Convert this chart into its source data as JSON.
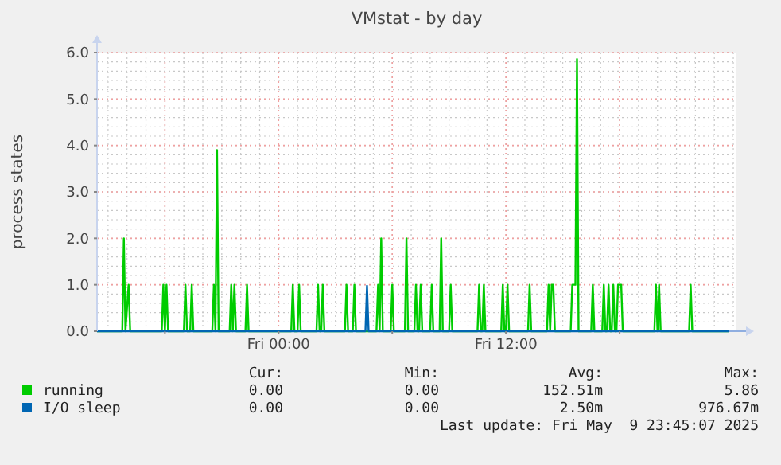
{
  "chart_data": {
    "type": "line",
    "title": "VMstat - by day",
    "ylabel": "process states",
    "grid": true,
    "legend": "bottom",
    "marker": "none",
    "line_style": "solid",
    "xlim": [
      "2025-05-08T14:25",
      "2025-05-10T00:10"
    ],
    "xticks": [
      {
        "value": "2025-05-08T18:00",
        "label": null
      },
      {
        "value": "2025-05-09T00:00",
        "label": "Fri 00:00"
      },
      {
        "value": "2025-05-09T06:00",
        "label": null
      },
      {
        "value": "2025-05-09T12:00",
        "label": "Fri 12:00"
      },
      {
        "value": "2025-05-09T18:00",
        "label": null
      }
    ],
    "ylim": [
      0,
      6
    ],
    "yticks": [
      {
        "value": 0,
        "label": "0.0"
      },
      {
        "value": 1,
        "label": "1.0"
      },
      {
        "value": 2,
        "label": "2.0"
      },
      {
        "value": 3,
        "label": "3.0"
      },
      {
        "value": 4,
        "label": "4.0"
      },
      {
        "value": 5,
        "label": "5.0"
      },
      {
        "value": 6,
        "label": "6.0"
      }
    ],
    "series": [
      {
        "name": "running",
        "color": "#00cc00",
        "x": [
          "2025-05-08T14:25",
          "2025-05-08T15:45",
          "2025-05-08T15:50",
          "2025-05-08T15:55",
          "2025-05-08T16:05",
          "2025-05-08T16:10",
          "2025-05-08T17:50",
          "2025-05-08T17:55",
          "2025-05-08T18:00",
          "2025-05-08T18:05",
          "2025-05-08T18:10",
          "2025-05-08T19:00",
          "2025-05-08T19:05",
          "2025-05-08T19:10",
          "2025-05-08T19:20",
          "2025-05-08T19:25",
          "2025-05-08T19:30",
          "2025-05-08T20:30",
          "2025-05-08T20:35",
          "2025-05-08T20:40",
          "2025-05-08T20:45",
          "2025-05-08T20:50",
          "2025-05-08T21:25",
          "2025-05-08T21:30",
          "2025-05-08T21:35",
          "2025-05-08T21:40",
          "2025-05-08T21:45",
          "2025-05-08T22:15",
          "2025-05-08T22:20",
          "2025-05-08T22:25",
          "2025-05-09T00:40",
          "2025-05-09T00:45",
          "2025-05-09T00:50",
          "2025-05-09T01:00",
          "2025-05-09T01:05",
          "2025-05-09T01:10",
          "2025-05-09T02:00",
          "2025-05-09T02:05",
          "2025-05-09T02:10",
          "2025-05-09T02:15",
          "2025-05-09T02:20",
          "2025-05-09T02:25",
          "2025-05-09T03:30",
          "2025-05-09T03:35",
          "2025-05-09T03:40",
          "2025-05-09T03:55",
          "2025-05-09T04:00",
          "2025-05-09T04:05",
          "2025-05-09T05:10",
          "2025-05-09T05:15",
          "2025-05-09T05:20",
          "2025-05-09T05:25",
          "2025-05-09T05:30",
          "2025-05-09T05:55",
          "2025-05-09T06:00",
          "2025-05-09T06:05",
          "2025-05-09T06:40",
          "2025-05-09T06:45",
          "2025-05-09T06:50",
          "2025-05-09T07:10",
          "2025-05-09T07:15",
          "2025-05-09T07:20",
          "2025-05-09T07:25",
          "2025-05-09T07:30",
          "2025-05-09T07:35",
          "2025-05-09T08:00",
          "2025-05-09T08:05",
          "2025-05-09T08:10",
          "2025-05-09T08:30",
          "2025-05-09T08:35",
          "2025-05-09T08:40",
          "2025-05-09T09:00",
          "2025-05-09T09:05",
          "2025-05-09T09:10",
          "2025-05-09T10:30",
          "2025-05-09T10:35",
          "2025-05-09T10:40",
          "2025-05-09T10:45",
          "2025-05-09T10:50",
          "2025-05-09T10:55",
          "2025-05-09T11:45",
          "2025-05-09T11:50",
          "2025-05-09T11:55",
          "2025-05-09T12:00",
          "2025-05-09T12:05",
          "2025-05-09T12:10",
          "2025-05-09T13:10",
          "2025-05-09T13:15",
          "2025-05-09T13:20",
          "2025-05-09T14:10",
          "2025-05-09T14:15",
          "2025-05-09T14:20",
          "2025-05-09T14:25",
          "2025-05-09T14:30",
          "2025-05-09T14:35",
          "2025-05-09T15:25",
          "2025-05-09T15:30",
          "2025-05-09T15:35",
          "2025-05-09T15:40",
          "2025-05-09T15:45",
          "2025-05-09T15:50",
          "2025-05-09T16:30",
          "2025-05-09T16:35",
          "2025-05-09T16:40",
          "2025-05-09T17:05",
          "2025-05-09T17:10",
          "2025-05-09T17:15",
          "2025-05-09T17:20",
          "2025-05-09T17:25",
          "2025-05-09T17:30",
          "2025-05-09T17:35",
          "2025-05-09T17:40",
          "2025-05-09T17:45",
          "2025-05-09T17:50",
          "2025-05-09T17:55",
          "2025-05-09T18:00",
          "2025-05-09T18:05",
          "2025-05-09T18:10",
          "2025-05-09T19:50",
          "2025-05-09T19:55",
          "2025-05-09T20:00",
          "2025-05-09T20:05",
          "2025-05-09T20:10",
          "2025-05-09T21:40",
          "2025-05-09T21:45",
          "2025-05-09T21:50",
          "2025-05-09T23:45"
        ],
        "values": [
          0,
          0,
          2,
          0,
          1,
          0,
          0,
          1,
          0,
          1,
          0,
          0,
          1,
          0,
          0,
          1,
          0,
          0,
          1,
          0,
          3.9,
          0,
          0,
          1,
          0,
          1,
          0,
          0,
          1,
          0,
          0,
          1,
          0,
          0,
          1,
          0,
          0,
          1,
          0,
          0,
          1,
          0,
          0,
          1,
          0,
          0,
          1,
          0,
          0,
          1,
          0,
          2,
          0,
          0,
          1,
          0,
          0,
          2,
          0,
          0,
          1,
          0,
          0,
          1,
          0,
          0,
          1,
          0,
          0,
          2,
          0,
          0,
          1,
          0,
          0,
          1,
          0,
          0,
          1,
          0,
          0,
          1,
          0,
          0,
          1,
          0,
          0,
          1,
          0,
          0,
          1,
          0,
          1,
          1,
          0,
          0,
          1,
          1,
          1,
          5.86,
          0,
          0,
          1,
          0,
          0,
          1,
          0,
          0,
          1,
          0,
          0,
          1,
          0,
          0,
          1,
          1,
          1,
          0,
          0,
          1,
          0,
          1,
          0,
          0,
          1,
          0,
          0
        ]
      },
      {
        "name": "I/O sleep",
        "color": "#0066b3",
        "x": [
          "2025-05-08T14:25",
          "2025-05-09T04:35",
          "2025-05-09T04:40",
          "2025-05-09T04:45",
          "2025-05-09T23:45"
        ],
        "values": [
          0,
          0,
          0.98,
          0,
          0
        ]
      }
    ],
    "annotations": [
      "Cur:",
      "Min:",
      "Avg:",
      "Max:",
      "0.00",
      "0.00",
      "152.51m",
      "5.86",
      "0.00",
      "0.00",
      "2.50m",
      "976.67m",
      "Last update: Fri May  9 23:45:07 2025"
    ]
  }
}
